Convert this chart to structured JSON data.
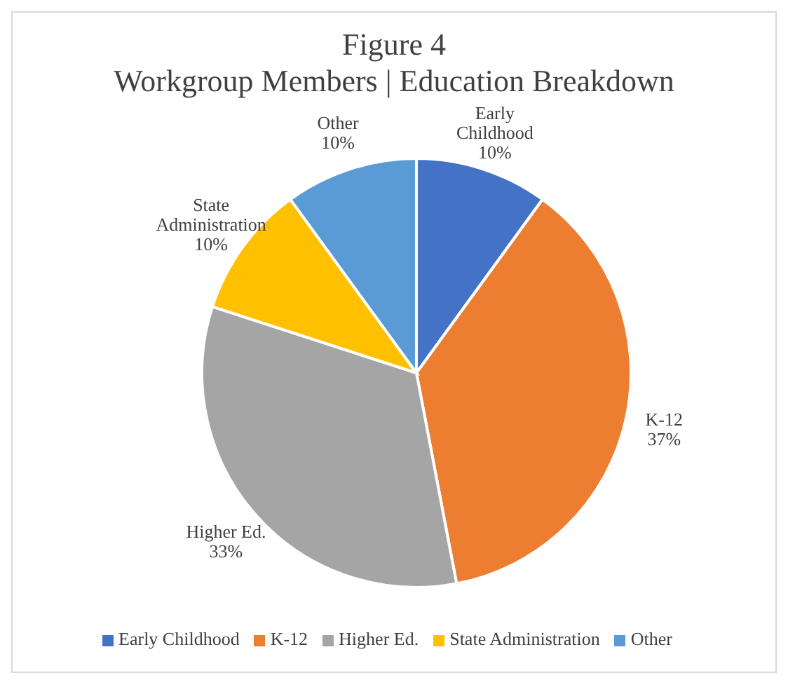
{
  "chart_data": {
    "type": "pie",
    "title": "Figure 4",
    "subtitle": "Workgroup Members | Education Breakdown",
    "categories": [
      "Early Childhood",
      "K-12",
      "Higher Ed.",
      "State Administration",
      "Other"
    ],
    "values": [
      10,
      37,
      33,
      10,
      10
    ],
    "value_labels": [
      "10%",
      "37%",
      "33%",
      "10%",
      "10%"
    ],
    "colors": [
      "#4472c4",
      "#ed7d31",
      "#a5a5a5",
      "#ffc000",
      "#5b9bd5"
    ],
    "legend": "bottom"
  }
}
